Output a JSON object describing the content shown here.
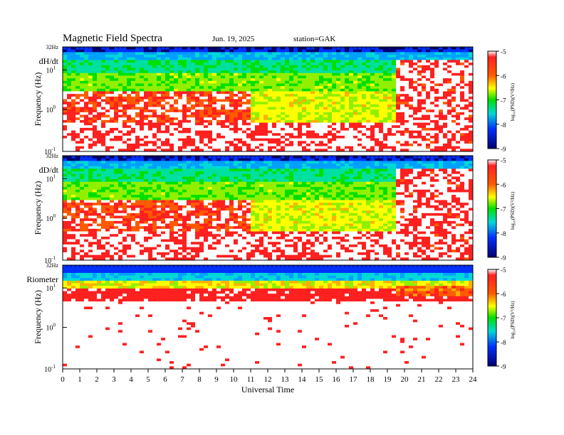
{
  "header": {
    "title": "Magnetic  Field  Spectra",
    "date": "Jun. 19, 2025",
    "station": "station=GAK"
  },
  "chart_data": [
    {
      "type": "heatmap",
      "panel_label": "dH/dt",
      "ylabel": "Frequency  (Hz)",
      "xlim": [
        0,
        24
      ],
      "y_scale": "log",
      "y_ticks": [
        {
          "base": "10",
          "exp": "-1"
        },
        {
          "base": "10",
          "exp": "0"
        },
        {
          "base": "10",
          "exp": "1"
        }
      ],
      "y_top_label": "32Hz",
      "colorbar": {
        "label": "log₁₀(PSD)(V²/Hz)",
        "ticks": [
          "-5",
          "-6",
          "-7",
          "-8",
          "-9"
        ],
        "range": [
          -9,
          -5
        ]
      },
      "gaps": [
        {
          "start": 19.5,
          "end": 24.0,
          "note": "broadband red/white high-power"
        }
      ],
      "profile": "mag"
    },
    {
      "type": "heatmap",
      "panel_label": "dD/dt",
      "ylabel": "Frequency  (Hz)",
      "xlim": [
        0,
        24
      ],
      "y_scale": "log",
      "y_ticks": [
        {
          "base": "10",
          "exp": "-1"
        },
        {
          "base": "10",
          "exp": "0"
        },
        {
          "base": "10",
          "exp": "1"
        }
      ],
      "y_top_label": "32Hz",
      "colorbar": {
        "label": "log₁₀(PSD)(V²/Hz)",
        "ticks": [
          "-5",
          "-6",
          "-7",
          "-8",
          "-9"
        ],
        "range": [
          -9,
          -5
        ]
      },
      "profile": "mag"
    },
    {
      "type": "heatmap",
      "panel_label": "Riometer",
      "ylabel": "Frequency  (Hz)",
      "xlim": [
        0,
        24
      ],
      "y_scale": "log",
      "y_ticks": [
        {
          "base": "10",
          "exp": "-1"
        },
        {
          "base": "10",
          "exp": "0"
        },
        {
          "base": "10",
          "exp": "1"
        }
      ],
      "y_top_label": "32Hz",
      "colorbar": {
        "label": "log₁₀(PSD)(V²/Hz)",
        "ticks": [
          "-5",
          "-6",
          "-7",
          "-8",
          "-9"
        ],
        "range": [
          -9,
          -5
        ]
      },
      "profile": "rio"
    }
  ],
  "x_axis": {
    "label": "Universal Time",
    "ticks": [
      "0",
      "1",
      "2",
      "3",
      "4",
      "5",
      "6",
      "7",
      "8",
      "9",
      "10",
      "11",
      "12",
      "13",
      "14",
      "15",
      "16",
      "17",
      "18",
      "19",
      "20",
      "21",
      "22",
      "23",
      "24"
    ]
  }
}
